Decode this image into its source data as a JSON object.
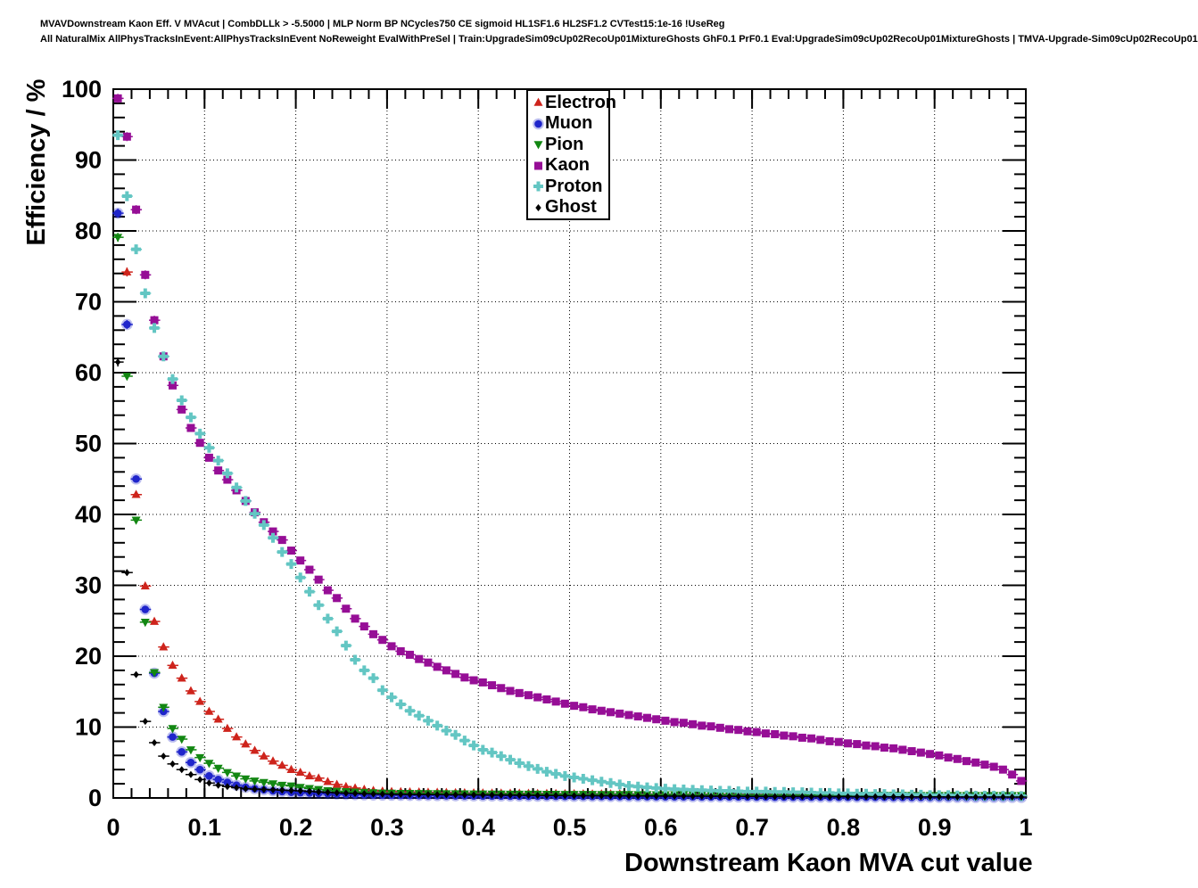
{
  "header": {
    "line1": "MVAVDownstream Kaon Eff. V MVAcut | CombDLLk > -5.5000 | MLP Norm BP NCycles750 CE sigmoid HL1SF1.6 HL2SF1.2 CVTest15:1e-16 !UseReg",
    "line2": "All NaturalMix AllPhysTracksInEvent:AllPhysTracksInEvent NoReweight EvalWithPreSel | Train:UpgradeSim09cUp02RecoUp01MixtureGhosts GhF0.1 PrF0.1 Eval:UpgradeSim09cUp02RecoUp01MixtureGhosts | TMVA-Upgrade-Sim09cUp02RecoUp01"
  },
  "chart_data": {
    "type": "scatter",
    "xlabel": "Downstream Kaon MVA cut value",
    "ylabel": "Efficiency / %",
    "xlim": [
      0,
      1
    ],
    "ylim": [
      0,
      100
    ],
    "x_tick_labels": [
      "0",
      "0.1",
      "0.2",
      "0.3",
      "0.4",
      "0.5",
      "0.6",
      "0.7",
      "0.8",
      "0.9",
      "1"
    ],
    "x_tick_values": [
      0,
      0.1,
      0.2,
      0.3,
      0.4,
      0.5,
      0.6,
      0.7,
      0.8,
      0.9,
      1
    ],
    "y_tick_labels": [
      "0",
      "10",
      "20",
      "30",
      "40",
      "50",
      "60",
      "70",
      "80",
      "90",
      "100"
    ],
    "y_tick_values": [
      0,
      10,
      20,
      30,
      40,
      50,
      60,
      70,
      80,
      90,
      100
    ],
    "x_minor_step": 0.02,
    "y_minor_step": 2,
    "grid": "dotted-major-both-axes",
    "legend_position": "top-center",
    "series": [
      {
        "name": "Electron",
        "color": "#ce241c",
        "marker": "triangle-up",
        "x_start": 0.015,
        "x_step": 0.01,
        "values": [
          74.2,
          42.8,
          29.9,
          24.9,
          21.3,
          18.7,
          16.9,
          15.1,
          13.6,
          12.2,
          11.1,
          9.8,
          8.6,
          7.6,
          6.7,
          5.9,
          5.2,
          4.6,
          4.0,
          3.6,
          3.1,
          2.8,
          2.3,
          1.9,
          1.6,
          1.4,
          1.2,
          1.05,
          0.95,
          0.9,
          0.88,
          0.85,
          0.83,
          0.8,
          0.78,
          0.76,
          0.74,
          0.72,
          0.7,
          0.69,
          0.68,
          0.67,
          0.66,
          0.65,
          0.64,
          0.63,
          0.62,
          0.61,
          0.6,
          0.59,
          0.58,
          0.57,
          0.57,
          0.56,
          0.56,
          0.55,
          0.55,
          0.54,
          0.54,
          0.53,
          0.53,
          0.52,
          0.52,
          0.51,
          0.51,
          0.5,
          0.5,
          0.5,
          0.49,
          0.49,
          0.48,
          0.48,
          0.47,
          0.47,
          0.46,
          0.46,
          0.45,
          0.45,
          0.44,
          0.44,
          0.43,
          0.43,
          0.42,
          0.42,
          0.42,
          0.41,
          0.41,
          0.4,
          0.4,
          0.4,
          0.39,
          0.39,
          0.38,
          0.38,
          0.37,
          0.37,
          0.36,
          0.35,
          0.35
        ]
      },
      {
        "name": "Muon",
        "color": "#1f25cb",
        "marker": "circle",
        "x_start": 0.005,
        "x_step": 0.01,
        "values": [
          82.5,
          66.8,
          45.0,
          26.6,
          17.6,
          12.2,
          8.6,
          6.5,
          5.0,
          4.0,
          3.1,
          2.6,
          2.2,
          1.8,
          1.5,
          1.3,
          1.15,
          1.0,
          0.9,
          0.8,
          0.75,
          0.7,
          0.65,
          0.6,
          0.55,
          0.5,
          0.47,
          0.44,
          0.42,
          0.4,
          0.38,
          0.37,
          0.36,
          0.35,
          0.34,
          0.33,
          0.32,
          0.31,
          0.3,
          0.29,
          0.28,
          0.28,
          0.27,
          0.26,
          0.26,
          0.25,
          0.25,
          0.24,
          0.24,
          0.23,
          0.22,
          0.22,
          0.21,
          0.21,
          0.2,
          0.2,
          0.19,
          0.19,
          0.18,
          0.18,
          0.17,
          0.17,
          0.16,
          0.16,
          0.15,
          0.15,
          0.15,
          0.14,
          0.14,
          0.13,
          0.13,
          0.13,
          0.12,
          0.12,
          0.12,
          0.11,
          0.11,
          0.11,
          0.1,
          0.1,
          0.1,
          0.1,
          0.1,
          0.1,
          0.1,
          0.09,
          0.09,
          0.09,
          0.09,
          0.09,
          0.09,
          0.08,
          0.08,
          0.08,
          0.08,
          0.08,
          0.08,
          0.08,
          0.08,
          0.08
        ]
      },
      {
        "name": "Pion",
        "color": "#128712",
        "marker": "triangle-down",
        "x_start": 0.005,
        "x_step": 0.01,
        "values": [
          79.1,
          59.5,
          39.2,
          24.8,
          17.7,
          12.8,
          9.8,
          8.3,
          6.8,
          5.7,
          4.9,
          4.2,
          3.6,
          3.1,
          2.7,
          2.4,
          2.2,
          2.0,
          1.8,
          1.7,
          1.5,
          1.35,
          1.2,
          1.05,
          0.95,
          0.9,
          0.85,
          0.8,
          0.75,
          0.7,
          0.68,
          0.66,
          0.65,
          0.64,
          0.63,
          0.62,
          0.61,
          0.6,
          0.59,
          0.58,
          0.57,
          0.56,
          0.56,
          0.55,
          0.55,
          0.54,
          0.54,
          0.53,
          0.53,
          0.52,
          0.52,
          0.51,
          0.51,
          0.5,
          0.5,
          0.49,
          0.49,
          0.48,
          0.48,
          0.47,
          0.47,
          0.46,
          0.46,
          0.45,
          0.45,
          0.45,
          0.44,
          0.44,
          0.43,
          0.43,
          0.42,
          0.42,
          0.42,
          0.41,
          0.41,
          0.41,
          0.4,
          0.4,
          0.4,
          0.39,
          0.39,
          0.39,
          0.38,
          0.38,
          0.38,
          0.37,
          0.37,
          0.37,
          0.36,
          0.36,
          0.36,
          0.36,
          0.35,
          0.35,
          0.35,
          0.35,
          0.35,
          0.35,
          0.35,
          0.35
        ]
      },
      {
        "name": "Kaon",
        "color": "#960e96",
        "marker": "square",
        "x_start": 0.005,
        "x_step": 0.01,
        "values": [
          98.7,
          93.3,
          83.0,
          73.8,
          67.4,
          62.3,
          58.2,
          54.8,
          52.2,
          50.1,
          48.0,
          46.2,
          44.9,
          43.4,
          41.9,
          40.3,
          38.9,
          37.6,
          36.4,
          34.9,
          33.5,
          32.2,
          30.8,
          29.3,
          28.2,
          26.7,
          25.3,
          24.2,
          23.1,
          22.3,
          21.4,
          20.7,
          20.2,
          19.6,
          19.1,
          18.5,
          18.0,
          17.5,
          17.0,
          16.6,
          16.3,
          15.9,
          15.5,
          15.1,
          14.8,
          14.5,
          14.2,
          13.9,
          13.6,
          13.3,
          13.0,
          12.8,
          12.5,
          12.3,
          12.1,
          11.9,
          11.7,
          11.5,
          11.3,
          11.1,
          10.9,
          10.7,
          10.6,
          10.4,
          10.2,
          10.1,
          9.9,
          9.7,
          9.6,
          9.4,
          9.3,
          9.1,
          9.0,
          8.8,
          8.7,
          8.5,
          8.4,
          8.2,
          8.0,
          7.9,
          7.7,
          7.6,
          7.4,
          7.3,
          7.1,
          7.0,
          6.8,
          6.6,
          6.4,
          6.2,
          6.0,
          5.7,
          5.5,
          5.2,
          5.0,
          4.7,
          4.4,
          4.0,
          3.3,
          2.4
        ]
      },
      {
        "name": "Proton",
        "color": "#63c6c3",
        "marker": "cross",
        "x_start": 0.005,
        "x_step": 0.01,
        "values": [
          93.5,
          84.9,
          77.4,
          71.2,
          66.3,
          62.3,
          59.1,
          56.1,
          53.7,
          51.4,
          49.4,
          47.6,
          45.8,
          43.8,
          41.9,
          40.1,
          38.5,
          36.7,
          34.7,
          33.0,
          31.1,
          29.1,
          27.2,
          25.3,
          23.5,
          21.5,
          19.5,
          18.0,
          16.9,
          15.2,
          14.2,
          13.2,
          12.3,
          11.6,
          10.9,
          10.2,
          9.5,
          8.9,
          8.1,
          7.4,
          6.8,
          6.4,
          5.9,
          5.4,
          4.9,
          4.5,
          4.1,
          3.7,
          3.4,
          3.1,
          2.9,
          2.7,
          2.5,
          2.3,
          2.1,
          1.9,
          1.7,
          1.6,
          1.5,
          1.4,
          1.3,
          1.25,
          1.2,
          1.15,
          1.1,
          1.05,
          1.0,
          1.0,
          0.95,
          0.9,
          0.9,
          0.9,
          0.85,
          0.85,
          0.8,
          0.8,
          0.75,
          0.7,
          0.7,
          0.65,
          0.65,
          0.6,
          0.6,
          0.55,
          0.55,
          0.5,
          0.5,
          0.45,
          0.45,
          0.4,
          0.4,
          0.4,
          0.35,
          0.35,
          0.3,
          0.3,
          0.3,
          0.28,
          0.27,
          0.25
        ]
      },
      {
        "name": "Ghost",
        "color": "#000000",
        "marker": "diamond",
        "x_start": 0.005,
        "x_step": 0.01,
        "values": [
          61.5,
          31.8,
          17.4,
          10.8,
          7.8,
          5.9,
          4.8,
          4.0,
          3.3,
          2.6,
          2.1,
          1.8,
          1.6,
          1.45,
          1.3,
          1.25,
          1.2,
          1.15,
          1.1,
          1.05,
          1.0,
          0.92,
          0.85,
          0.78,
          0.72,
          0.68,
          0.64,
          0.6,
          0.57,
          0.55,
          0.52,
          0.51,
          0.5,
          0.49,
          0.48,
          0.47,
          0.46,
          0.45,
          0.44,
          0.43,
          0.42,
          0.41,
          0.4,
          0.39,
          0.38,
          0.37,
          0.36,
          0.35,
          0.34,
          0.33,
          0.32,
          0.31,
          0.31,
          0.3,
          0.3,
          0.29,
          0.29,
          0.28,
          0.28,
          0.27,
          0.27,
          0.26,
          0.26,
          0.25,
          0.25,
          0.24,
          0.24,
          0.23,
          0.23,
          0.22,
          0.22,
          0.21,
          0.21,
          0.2,
          0.2,
          0.2,
          0.19,
          0.19,
          0.18,
          0.18,
          0.18,
          0.17,
          0.17,
          0.17,
          0.16,
          0.16,
          0.16,
          0.15,
          0.15,
          0.15,
          0.15,
          0.14,
          0.14,
          0.14,
          0.13,
          0.13,
          0.13,
          0.13,
          0.12,
          0.12
        ]
      }
    ]
  }
}
